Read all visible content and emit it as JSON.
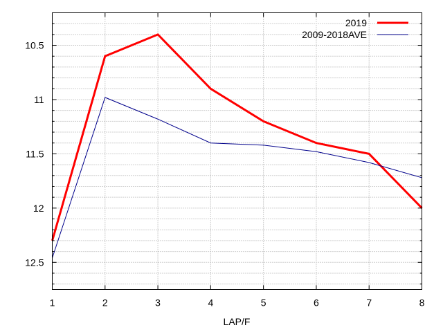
{
  "chart_data": {
    "type": "line",
    "title": "",
    "xlabel": "LAP/F",
    "ylabel": "",
    "x": [
      1,
      2,
      3,
      4,
      5,
      6,
      7,
      8
    ],
    "xticks": [
      "1",
      "2",
      "3",
      "4",
      "5",
      "6",
      "7",
      "8"
    ],
    "xlim": [
      1,
      8
    ],
    "ylim": [
      12.75,
      10.2
    ],
    "y_inverted": true,
    "yticks": [
      10.5,
      11,
      11.5,
      12,
      12.5
    ],
    "ytick_labels": [
      "10.5",
      "11",
      "11.5",
      "12",
      "12.5"
    ],
    "y_minor_step": 0.1,
    "grid": true,
    "legend_position": "top-right",
    "series": [
      {
        "name": "2019",
        "color": "#ff0000",
        "values": [
          12.3,
          10.6,
          10.4,
          10.9,
          11.2,
          11.4,
          11.5,
          12.0
        ]
      },
      {
        "name": "2009-2018AVE",
        "color": "#00008b",
        "values": [
          12.46,
          10.98,
          11.18,
          11.4,
          11.42,
          11.48,
          11.58,
          11.72
        ]
      }
    ]
  }
}
